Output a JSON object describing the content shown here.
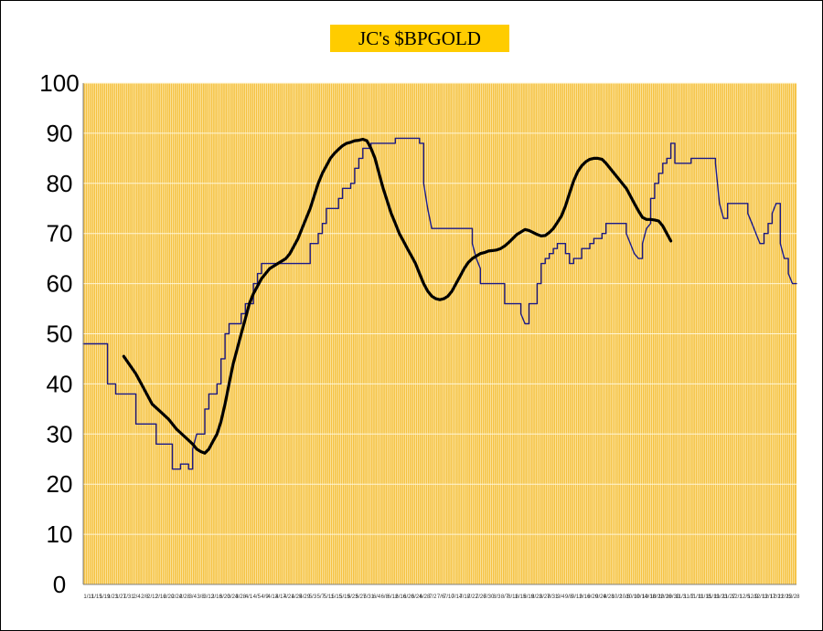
{
  "colors": {
    "plot_background": "#F5C242",
    "grid": "#FFF6D5",
    "title_background": "#FFCC00",
    "price_line": "#1A1A8C",
    "moving_average_line": "#000000"
  },
  "chart_data": {
    "type": "line",
    "title": "JC's $BPGOLD",
    "xlabel": "",
    "ylabel": "",
    "ylim": [
      0,
      100
    ],
    "yticks": [
      0,
      10,
      20,
      30,
      40,
      50,
      60,
      70,
      80,
      90,
      100
    ],
    "grid": true,
    "legend": "none",
    "x_tick_labels": [
      "1/11",
      "1/15",
      "1/19",
      "1/23",
      "1/27",
      "1/31",
      "2/4",
      "2/8",
      "2/12",
      "2/16",
      "2/20",
      "2/24",
      "2/28",
      "3/4",
      "3/8",
      "3/12",
      "3/16",
      "3/20",
      "3/24",
      "3/28",
      "4/1",
      "4/5",
      "4/9",
      "4/13",
      "4/17",
      "4/21",
      "4/25",
      "4/29",
      "5/3",
      "5/7",
      "5/11",
      "5/15",
      "5/19",
      "5/23",
      "5/27",
      "5/31",
      "6/4",
      "6/8",
      "6/12",
      "6/16",
      "6/20",
      "6/24",
      "6/28",
      "7/2",
      "7/6",
      "7/10",
      "7/14",
      "7/18",
      "7/22",
      "7/26",
      "7/30",
      "8/3",
      "8/7",
      "8/11",
      "8/15",
      "8/19",
      "8/23",
      "8/27",
      "8/31",
      "9/4",
      "9/8",
      "9/12",
      "9/16",
      "9/20",
      "9/24",
      "9/28",
      "10/2",
      "10/6",
      "10/10",
      "10/14",
      "10/18",
      "10/22",
      "10/26",
      "10/30",
      "11/3",
      "11/7",
      "11/11",
      "11/15",
      "11/19",
      "11/23",
      "11/27",
      "12/1",
      "12/5",
      "12/9",
      "12/13",
      "12/17",
      "12/21",
      "12/25",
      "12/28"
    ],
    "series": [
      {
        "name": "",
        "style": "thin-step",
        "points": [
          [
            0,
            48
          ],
          [
            6,
            48
          ],
          [
            6,
            40
          ],
          [
            8,
            40
          ],
          [
            8,
            38
          ],
          [
            13,
            38
          ],
          [
            13,
            32
          ],
          [
            18,
            32
          ],
          [
            18,
            28
          ],
          [
            22,
            28
          ],
          [
            22,
            23
          ],
          [
            24,
            23
          ],
          [
            24,
            24
          ],
          [
            26,
            24
          ],
          [
            26,
            23
          ],
          [
            27,
            23
          ],
          [
            27,
            27
          ],
          [
            28,
            30
          ],
          [
            30,
            30
          ],
          [
            30,
            35
          ],
          [
            31,
            35
          ],
          [
            31,
            38
          ],
          [
            33,
            38
          ],
          [
            33,
            40
          ],
          [
            34,
            40
          ],
          [
            34,
            45
          ],
          [
            35,
            45
          ],
          [
            35,
            50
          ],
          [
            36,
            50
          ],
          [
            36,
            52
          ],
          [
            39,
            52
          ],
          [
            39,
            54
          ],
          [
            40,
            54
          ],
          [
            40,
            56
          ],
          [
            42,
            56
          ],
          [
            42,
            60
          ],
          [
            43,
            60
          ],
          [
            43,
            62
          ],
          [
            44,
            62
          ],
          [
            44,
            64
          ],
          [
            56,
            64
          ],
          [
            56,
            68
          ],
          [
            58,
            68
          ],
          [
            58,
            70
          ],
          [
            59,
            70
          ],
          [
            59,
            72
          ],
          [
            60,
            72
          ],
          [
            60,
            75
          ],
          [
            63,
            75
          ],
          [
            63,
            77
          ],
          [
            64,
            77
          ],
          [
            64,
            79
          ],
          [
            66,
            79
          ],
          [
            66,
            80
          ],
          [
            67,
            80
          ],
          [
            67,
            83
          ],
          [
            68,
            83
          ],
          [
            68,
            85
          ],
          [
            69,
            85
          ],
          [
            69,
            87
          ],
          [
            71,
            87
          ],
          [
            71,
            88
          ],
          [
            77,
            88
          ],
          [
            77,
            89
          ],
          [
            83,
            89
          ],
          [
            83,
            88
          ],
          [
            84,
            88
          ],
          [
            84,
            80
          ],
          [
            85,
            75
          ],
          [
            86,
            71
          ],
          [
            96,
            71
          ],
          [
            96,
            68
          ],
          [
            97,
            65
          ],
          [
            98,
            63
          ],
          [
            98,
            60
          ],
          [
            104,
            60
          ],
          [
            104,
            56
          ],
          [
            108,
            56
          ],
          [
            108,
            54
          ],
          [
            109,
            52
          ],
          [
            110,
            52
          ],
          [
            110,
            56
          ],
          [
            112,
            56
          ],
          [
            112,
            60
          ],
          [
            113,
            60
          ],
          [
            113,
            64
          ],
          [
            114,
            64
          ],
          [
            114,
            65
          ],
          [
            115,
            65
          ],
          [
            115,
            66
          ],
          [
            116,
            66
          ],
          [
            116,
            67
          ],
          [
            117,
            67
          ],
          [
            117,
            68
          ],
          [
            119,
            68
          ],
          [
            119,
            66
          ],
          [
            120,
            66
          ],
          [
            120,
            64
          ],
          [
            121,
            64
          ],
          [
            121,
            65
          ],
          [
            123,
            65
          ],
          [
            123,
            67
          ],
          [
            125,
            67
          ],
          [
            125,
            68
          ],
          [
            126,
            68
          ],
          [
            126,
            69
          ],
          [
            128,
            69
          ],
          [
            128,
            70
          ],
          [
            129,
            70
          ],
          [
            129,
            72
          ],
          [
            134,
            72
          ],
          [
            134,
            70
          ],
          [
            135,
            68
          ],
          [
            136,
            66
          ],
          [
            137,
            65
          ],
          [
            138,
            65
          ],
          [
            138,
            68
          ],
          [
            139,
            71
          ],
          [
            140,
            72
          ],
          [
            140,
            77
          ],
          [
            141,
            77
          ],
          [
            141,
            80
          ],
          [
            142,
            80
          ],
          [
            142,
            82
          ],
          [
            143,
            82
          ],
          [
            143,
            84
          ],
          [
            144,
            84
          ],
          [
            144,
            85
          ],
          [
            145,
            85
          ],
          [
            145,
            88
          ],
          [
            146,
            88
          ],
          [
            146,
            84
          ],
          [
            150,
            84
          ],
          [
            150,
            85
          ],
          [
            156,
            85
          ],
          [
            156,
            84
          ],
          [
            157,
            76
          ],
          [
            158,
            73
          ],
          [
            159,
            73
          ],
          [
            159,
            76
          ],
          [
            164,
            76
          ],
          [
            164,
            74
          ],
          [
            165,
            72
          ],
          [
            166,
            70
          ],
          [
            167,
            68
          ],
          [
            168,
            68
          ],
          [
            168,
            70
          ],
          [
            169,
            70
          ],
          [
            169,
            72
          ],
          [
            170,
            72
          ],
          [
            170,
            74
          ],
          [
            171,
            76
          ],
          [
            172,
            76
          ],
          [
            172,
            68
          ],
          [
            173,
            65
          ],
          [
            174,
            65
          ],
          [
            174,
            62
          ],
          [
            175,
            60
          ],
          [
            176,
            60
          ]
        ]
      },
      {
        "name": "",
        "style": "thick-smooth",
        "points": [
          [
            10,
            45.5
          ],
          [
            13,
            42
          ],
          [
            15,
            39
          ],
          [
            17,
            36
          ],
          [
            19,
            34.5
          ],
          [
            21,
            33
          ],
          [
            23,
            31
          ],
          [
            25,
            29.5
          ],
          [
            27,
            28
          ],
          [
            28,
            27
          ],
          [
            29,
            26.5
          ],
          [
            30,
            26.2
          ],
          [
            31,
            27
          ],
          [
            32,
            28.5
          ],
          [
            33,
            30
          ],
          [
            34,
            32.5
          ],
          [
            35,
            36
          ],
          [
            36,
            40
          ],
          [
            37,
            44
          ],
          [
            38,
            47
          ],
          [
            39,
            50
          ],
          [
            40,
            53
          ],
          [
            41,
            56
          ],
          [
            42,
            58
          ],
          [
            43,
            59.5
          ],
          [
            44,
            61
          ],
          [
            45,
            62
          ],
          [
            46,
            63
          ],
          [
            47,
            63.5
          ],
          [
            48,
            64
          ],
          [
            49,
            64.5
          ],
          [
            50,
            65
          ],
          [
            51,
            66
          ],
          [
            52,
            67.5
          ],
          [
            53,
            69
          ],
          [
            54,
            71
          ],
          [
            55,
            73
          ],
          [
            56,
            75
          ],
          [
            57,
            77.5
          ],
          [
            58,
            80
          ],
          [
            59,
            82
          ],
          [
            60,
            83.5
          ],
          [
            61,
            85
          ],
          [
            62,
            86
          ],
          [
            63,
            86.8
          ],
          [
            64,
            87.5
          ],
          [
            65,
            88
          ],
          [
            66,
            88.2
          ],
          [
            67,
            88.5
          ],
          [
            68,
            88.6
          ],
          [
            69,
            88.8
          ],
          [
            70,
            88.5
          ],
          [
            71,
            87
          ],
          [
            72,
            85
          ],
          [
            73,
            82
          ],
          [
            74,
            79
          ],
          [
            75,
            76.5
          ],
          [
            76,
            74
          ],
          [
            77,
            72
          ],
          [
            78,
            70
          ],
          [
            79,
            68.5
          ],
          [
            80,
            67
          ],
          [
            81,
            65.5
          ],
          [
            82,
            64
          ],
          [
            83,
            62
          ],
          [
            84,
            60
          ],
          [
            85,
            58.5
          ],
          [
            86,
            57.5
          ],
          [
            87,
            57
          ],
          [
            88,
            56.8
          ],
          [
            89,
            57
          ],
          [
            90,
            57.5
          ],
          [
            91,
            58.5
          ],
          [
            92,
            60
          ],
          [
            93,
            61.5
          ],
          [
            94,
            63
          ],
          [
            95,
            64.2
          ],
          [
            96,
            65
          ],
          [
            97,
            65.5
          ],
          [
            98,
            66
          ],
          [
            99,
            66.2
          ],
          [
            100,
            66.5
          ],
          [
            101,
            66.6
          ],
          [
            102,
            66.7
          ],
          [
            103,
            67
          ],
          [
            104,
            67.5
          ],
          [
            105,
            68.2
          ],
          [
            106,
            69
          ],
          [
            107,
            69.8
          ],
          [
            108,
            70.3
          ],
          [
            109,
            70.8
          ],
          [
            110,
            70.6
          ],
          [
            111,
            70.2
          ],
          [
            112,
            69.8
          ],
          [
            113,
            69.5
          ],
          [
            114,
            69.6
          ],
          [
            115,
            70.2
          ],
          [
            116,
            71
          ],
          [
            117,
            72.2
          ],
          [
            118,
            73.5
          ],
          [
            119,
            75.5
          ],
          [
            120,
            78
          ],
          [
            121,
            80.5
          ],
          [
            122,
            82.3
          ],
          [
            123,
            83.5
          ],
          [
            124,
            84.3
          ],
          [
            125,
            84.8
          ],
          [
            126,
            85
          ],
          [
            127,
            85
          ],
          [
            128,
            84.8
          ],
          [
            129,
            84
          ],
          [
            130,
            83
          ],
          [
            131,
            82
          ],
          [
            132,
            81
          ],
          [
            133,
            80
          ],
          [
            134,
            79
          ],
          [
            135,
            77.5
          ],
          [
            136,
            76
          ],
          [
            137,
            74.5
          ],
          [
            138,
            73.2
          ],
          [
            139,
            72.8
          ],
          [
            140,
            72.8
          ],
          [
            141,
            72.7
          ],
          [
            142,
            72.5
          ],
          [
            143,
            71.5
          ],
          [
            144,
            70
          ],
          [
            145,
            68.5
          ]
        ]
      }
    ]
  }
}
